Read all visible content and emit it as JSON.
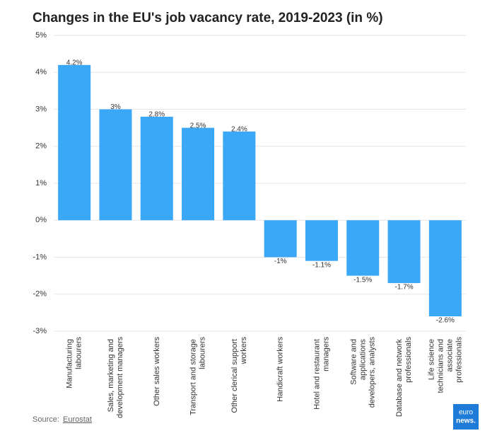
{
  "chart_data": {
    "type": "bar",
    "title": "Changes in the EU's job vacancy rate, 2019-2023 (in %)",
    "categories": [
      "Manufacturing labourers",
      "Sales, marketing and development managers",
      "Other sales workers",
      "Transport and storage labourers",
      "Other clerical support workers",
      "Handicraft workers",
      "Hotel and restaurant managers",
      "Software and applications developers, analysts",
      "Database and network professionals",
      "Life science technicians and associate professionals"
    ],
    "values": [
      4.2,
      3,
      2.8,
      2.5,
      2.4,
      -1,
      -1.1,
      -1.5,
      -1.7,
      -2.6
    ],
    "value_labels": [
      "4.2%",
      "3%",
      "2.8%",
      "2.5%",
      "2.4%",
      "-1%",
      "-1.1%",
      "-1.5%",
      "-1.7%",
      "-2.6%"
    ],
    "color": "#3ba7f7",
    "ylim": [
      -3,
      5
    ],
    "yticks": [
      {
        "value": -3,
        "label": "-3%"
      },
      {
        "value": -2,
        "label": "-2%"
      },
      {
        "value": -1,
        "label": "-1%"
      },
      {
        "value": 0,
        "label": "0%"
      },
      {
        "value": 1,
        "label": "1%"
      },
      {
        "value": 2,
        "label": "2%"
      },
      {
        "value": 3,
        "label": "3%"
      },
      {
        "value": 4,
        "label": "4%"
      },
      {
        "value": 5,
        "label": "5%"
      }
    ],
    "grid": true,
    "source_label": "Source:",
    "source_link": "Eurostat",
    "logo": [
      "euro",
      "news."
    ]
  }
}
